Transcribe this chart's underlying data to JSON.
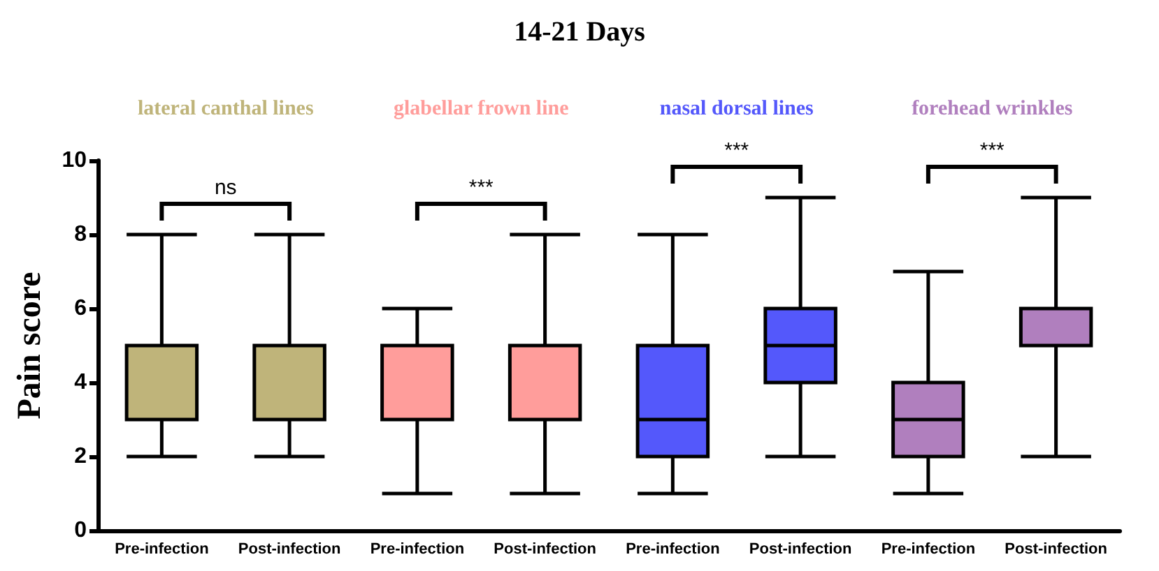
{
  "chart_data": {
    "type": "box",
    "title": "14-21 Days",
    "ylabel": "Pain score",
    "categories": [
      "Pre-infection",
      "Post-infection",
      "Pre-infection",
      "Post-infection",
      "Pre-infection",
      "Post-infection",
      "Pre-infection",
      "Post-infection"
    ],
    "series": [
      {
        "name": "lateral canthal lines",
        "color": "#bfb47a",
        "boxes": [
          {
            "low": 2,
            "q1": 3,
            "median": 5,
            "q3": 5,
            "high": 8
          },
          {
            "low": 2,
            "q1": 3,
            "median": 5,
            "q3": 5,
            "high": 8
          },
          null,
          null,
          null,
          null,
          null,
          null
        ]
      },
      {
        "name": "glabellar frown line",
        "color": "#ff9d9b",
        "boxes": [
          null,
          null,
          {
            "low": 1,
            "q1": 3,
            "median": 3,
            "q3": 5,
            "high": 6
          },
          {
            "low": 1,
            "q1": 3,
            "median": 5,
            "q3": 5,
            "high": 8
          },
          null,
          null,
          null,
          null
        ]
      },
      {
        "name": "nasal dorsal lines",
        "color": "#5458fb",
        "boxes": [
          null,
          null,
          null,
          null,
          {
            "low": 1,
            "q1": 2,
            "median": 3,
            "q3": 5,
            "high": 8
          },
          {
            "low": 2,
            "q1": 4,
            "median": 5,
            "q3": 6,
            "high": 9
          },
          null,
          null
        ]
      },
      {
        "name": "forehead wrinkles",
        "color": "#b07fbe",
        "boxes": [
          null,
          null,
          null,
          null,
          null,
          null,
          {
            "low": 1,
            "q1": 2,
            "median": 3,
            "q3": 4,
            "high": 7
          },
          {
            "low": 2,
            "q1": 5,
            "median": 5,
            "q3": 6,
            "high": 9
          }
        ]
      }
    ],
    "annotations": [
      "ns",
      "***",
      "***",
      "***"
    ],
    "ylim": [
      0,
      10
    ],
    "yticks": [
      0,
      2,
      4,
      6,
      8,
      10
    ],
    "grid": false,
    "legend": false
  }
}
